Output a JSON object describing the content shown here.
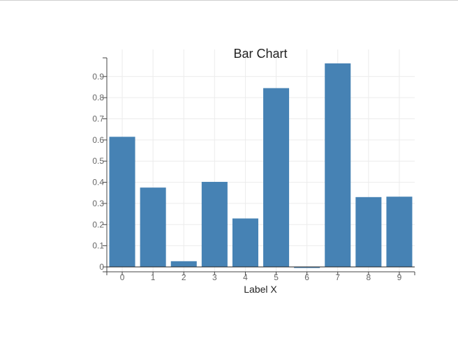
{
  "chart_data": {
    "type": "bar",
    "title": "Bar Chart",
    "xlabel": "Label X",
    "ylabel": "",
    "categories": [
      "0",
      "1",
      "2",
      "3",
      "4",
      "5",
      "6",
      "7",
      "8",
      "9"
    ],
    "values": [
      0.615,
      0.375,
      0.027,
      0.402,
      0.229,
      0.845,
      -0.005,
      0.962,
      0.33,
      0.332
    ],
    "ylim": [
      -0.03,
      1.0
    ],
    "yticks": [
      0,
      0.1,
      0.2,
      0.3,
      0.4,
      0.5,
      0.6,
      0.7,
      0.8,
      0.9
    ],
    "ytick_labels": [
      "0",
      "0.1",
      "0.2",
      "0.3",
      "0.4",
      "0.5",
      "0.6",
      "0.7",
      "0.8",
      "0.9"
    ],
    "grid": true,
    "bar_color": "#4682b4"
  }
}
